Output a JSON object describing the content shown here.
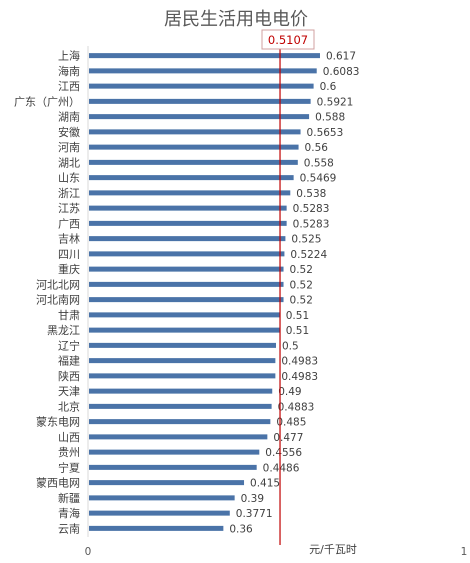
{
  "chart_data": {
    "type": "bar",
    "orientation": "horizontal",
    "title": "居民生活用电电价",
    "unit_label": "元/千瓦时",
    "xlim": [
      0,
      1
    ],
    "x_ticks": [
      "0",
      "1"
    ],
    "grid": false,
    "bar_color": "#4a73a8",
    "reference_line": {
      "value": 0.5107,
      "label": "0.5107",
      "color": "#c00000"
    },
    "categories": [
      "上海",
      "海南",
      "江西",
      "广东（广州）",
      "湖南",
      "安徽",
      "河南",
      "湖北",
      "山东",
      "浙江",
      "江苏",
      "广西",
      "吉林",
      "四川",
      "重庆",
      "河北北网",
      "河北南网",
      "甘肃",
      "黑龙江",
      "辽宁",
      "福建",
      "陕西",
      "天津",
      "北京",
      "蒙东电网",
      "山西",
      "贵州",
      "宁夏",
      "蒙西电网",
      "新疆",
      "青海",
      "云南"
    ],
    "values": [
      0.617,
      0.6083,
      0.6,
      0.5921,
      0.588,
      0.5653,
      0.56,
      0.558,
      0.5469,
      0.538,
      0.5283,
      0.5283,
      0.525,
      0.5224,
      0.52,
      0.52,
      0.52,
      0.51,
      0.51,
      0.5,
      0.4983,
      0.4983,
      0.49,
      0.4883,
      0.485,
      0.477,
      0.4556,
      0.4486,
      0.415,
      0.39,
      0.3771,
      0.36
    ],
    "value_labels": [
      "0.617",
      "0.6083",
      "0.6",
      "0.5921",
      "0.588",
      "0.5653",
      "0.56",
      "0.558",
      "0.5469",
      "0.538",
      "0.5283",
      "0.5283",
      "0.525",
      "0.5224",
      "0.52",
      "0.52",
      "0.52",
      "0.51",
      "0.51",
      "0.5",
      "0.4983",
      "0.4983",
      "0.49",
      "0.4883",
      "0.485",
      "0.477",
      "0.4556",
      "0.4486",
      "0.415",
      "0.39",
      "0.3771",
      "0.36"
    ]
  }
}
